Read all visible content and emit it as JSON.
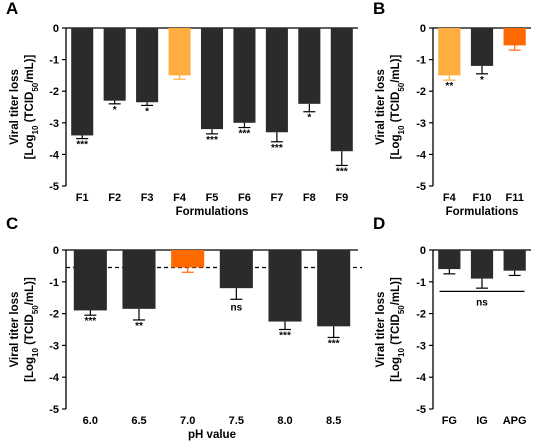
{
  "colors": {
    "dark": "#2b2b2b",
    "light_orange": "#ffad40",
    "orange": "#ff6a00"
  },
  "chart_data": [
    {
      "panel": "A",
      "type": "bar",
      "categories": [
        "F1",
        "F2",
        "F3",
        "F4",
        "F5",
        "F6",
        "F7",
        "F8",
        "F9"
      ],
      "values": [
        -3.4,
        -2.3,
        -2.35,
        -1.5,
        -3.2,
        -3.0,
        -3.3,
        -2.4,
        -3.9
      ],
      "errors": [
        0.1,
        0.1,
        0.1,
        0.12,
        0.15,
        0.15,
        0.3,
        0.25,
        0.45
      ],
      "bar_colors": [
        "dark",
        "dark",
        "dark",
        "light_orange",
        "dark",
        "dark",
        "dark",
        "dark",
        "dark"
      ],
      "significance": [
        "***",
        "*",
        "*",
        "",
        "***",
        "***",
        "***",
        "*",
        "***"
      ],
      "xlabel": "Formulations",
      "ylabel_line1": "Viral titer loss",
      "ylabel_line2": "[Log10 (TCID50/mL)]",
      "yticks": [
        "0",
        "-1",
        "-2",
        "-3",
        "-4",
        "-5"
      ],
      "ylim": [
        -5,
        0
      ]
    },
    {
      "panel": "B",
      "type": "bar",
      "categories": [
        "F4",
        "F10",
        "F11"
      ],
      "values": [
        -1.5,
        -1.2,
        -0.55
      ],
      "errors": [
        0.15,
        0.25,
        0.15
      ],
      "bar_colors": [
        "light_orange",
        "dark",
        "orange"
      ],
      "significance": [
        "**",
        "*",
        ""
      ],
      "xlabel": "Formulations",
      "ylabel_line1": "Viral titer loss",
      "ylabel_line2": "[Log10 (TCID50/mL)]",
      "yticks": [
        "0",
        "-1",
        "-2",
        "-3",
        "-4",
        "-5"
      ],
      "ylim": [
        -5,
        0
      ]
    },
    {
      "panel": "C",
      "type": "bar",
      "categories": [
        "6.0",
        "6.5",
        "7.0",
        "7.5",
        "8.0",
        "8.5"
      ],
      "values": [
        -1.9,
        -1.85,
        -0.55,
        -1.2,
        -2.25,
        -2.4
      ],
      "errors": [
        0.15,
        0.35,
        0.15,
        0.35,
        0.25,
        0.35
      ],
      "bar_colors": [
        "dark",
        "dark",
        "orange",
        "dark",
        "dark",
        "dark"
      ],
      "significance": [
        "***",
        "**",
        "",
        "ns",
        "***",
        "***"
      ],
      "reference_line": -0.55,
      "xlabel": "pH value",
      "ylabel_line1": "Viral titer loss",
      "ylabel_line2": "[Log10 (TCID50/mL)]",
      "yticks": [
        "0",
        "-1",
        "-2",
        "-3",
        "-4",
        "-5"
      ],
      "ylim": [
        -5,
        0
      ]
    },
    {
      "panel": "D",
      "type": "bar",
      "categories": [
        "FG",
        "IG",
        "APG"
      ],
      "values": [
        -0.6,
        -0.9,
        -0.65
      ],
      "errors": [
        0.15,
        0.3,
        0.15
      ],
      "bar_colors": [
        "dark",
        "dark",
        "dark"
      ],
      "significance_bracket": "ns",
      "xlabel": "",
      "ylabel_line1": "Viral titer loss",
      "ylabel_line2": "[Log10 (TCID50/mL)]",
      "yticks": [
        "0",
        "-1",
        "-2",
        "-3",
        "-4",
        "-5"
      ],
      "ylim": [
        -5,
        0
      ]
    }
  ]
}
